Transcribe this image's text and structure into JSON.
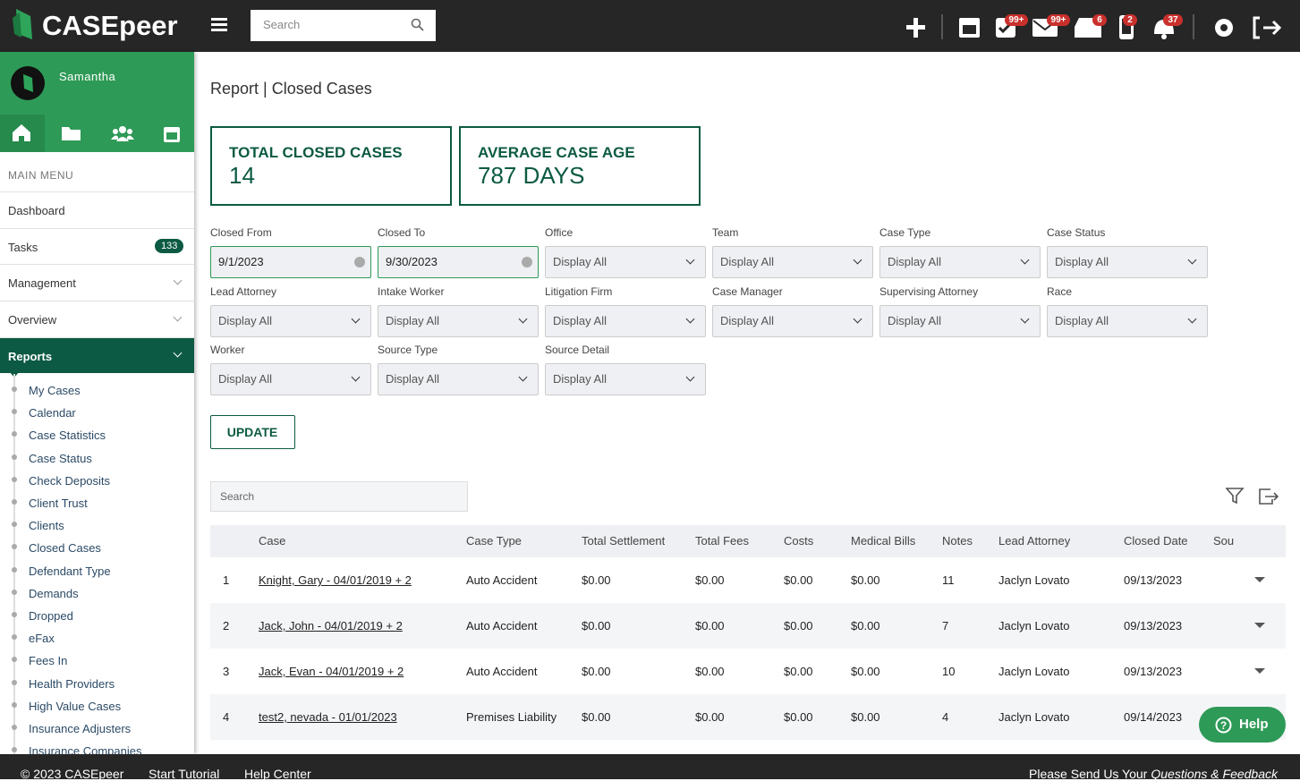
{
  "header": {
    "logo": "CASEpeer",
    "search_placeholder": "Search",
    "badges": [
      "99+",
      "99+",
      "6",
      "2",
      "37"
    ]
  },
  "sidebar": {
    "user": "Samantha",
    "menu_label": "MAIN MENU",
    "menu": [
      {
        "label": "Dashboard"
      },
      {
        "label": "Tasks",
        "badge": "133"
      },
      {
        "label": "Management"
      },
      {
        "label": "Overview"
      },
      {
        "label": "Reports"
      }
    ],
    "report_links": [
      "My Cases",
      "Calendar",
      "Case Statistics",
      "Case Status",
      "Check Deposits",
      "Client Trust",
      "Clients",
      "Closed Cases",
      "Defendant Type",
      "Demands",
      "Dropped",
      "eFax",
      "Fees In",
      "Health Providers",
      "High Value Cases",
      "Insurance Adjusters",
      "Insurance Companies"
    ]
  },
  "page": {
    "title": "Report | Closed Cases",
    "stats": [
      {
        "label": "TOTAL CLOSED CASES",
        "value": "14"
      },
      {
        "label": "AVERAGE CASE AGE",
        "value": "787 DAYS"
      }
    ],
    "filters": [
      {
        "label": "Closed From",
        "value": "9/1/2023"
      },
      {
        "label": "Closed To",
        "value": "9/30/2023"
      },
      {
        "label": "Office",
        "value": "Display All"
      },
      {
        "label": "Team",
        "value": "Display All"
      },
      {
        "label": "Case Type",
        "value": "Display All"
      },
      {
        "label": "Case Status",
        "value": "Display All"
      },
      {
        "label": "Lead Attorney",
        "value": "Display All"
      },
      {
        "label": "Intake Worker",
        "value": "Display All"
      },
      {
        "label": "Litigation Firm",
        "value": "Display All"
      },
      {
        "label": "Case Manager",
        "value": "Display All"
      },
      {
        "label": "Supervising Attorney",
        "value": "Display All"
      },
      {
        "label": "Race",
        "value": "Display All"
      },
      {
        "label": "Worker",
        "value": "Display All"
      },
      {
        "label": "Source Type",
        "value": "Display All"
      },
      {
        "label": "Source Detail",
        "value": "Display All"
      }
    ],
    "update_button": "UPDATE",
    "table_search_placeholder": "Search",
    "table": {
      "columns": [
        "Case",
        "Case Type",
        "Total Settlement",
        "Total Fees",
        "Costs",
        "Medical Bills",
        "Notes",
        "Lead Attorney",
        "Closed Date",
        "Sou"
      ],
      "rows": [
        [
          "1",
          "Knight, Gary - 04/01/2019 + 2",
          "Auto Accident",
          "$0.00",
          "$0.00",
          "$0.00",
          "$0.00",
          "11",
          "Jaclyn Lovato",
          "09/13/2023"
        ],
        [
          "2",
          "Jack, John - 04/01/2019 + 2",
          "Auto Accident",
          "$0.00",
          "$0.00",
          "$0.00",
          "$0.00",
          "7",
          "Jaclyn Lovato",
          "09/13/2023"
        ],
        [
          "3",
          "Jack, Evan - 04/01/2019 + 2",
          "Auto Accident",
          "$0.00",
          "$0.00",
          "$0.00",
          "$0.00",
          "10",
          "Jaclyn Lovato",
          "09/13/2023"
        ],
        [
          "4",
          "test2, nevada - 01/01/2023",
          "Premises Liability",
          "$0.00",
          "$0.00",
          "$0.00",
          "$0.00",
          "4",
          "Jaclyn Lovato",
          "09/14/2023"
        ]
      ]
    }
  },
  "help_button": "Help",
  "footer": {
    "copyright": "© 2023 CASEpeer",
    "links": [
      "Start Tutorial",
      "Help Center"
    ],
    "feedback_prefix": "Please Send Us Your",
    "feedback_link": "Questions & Feedback"
  }
}
